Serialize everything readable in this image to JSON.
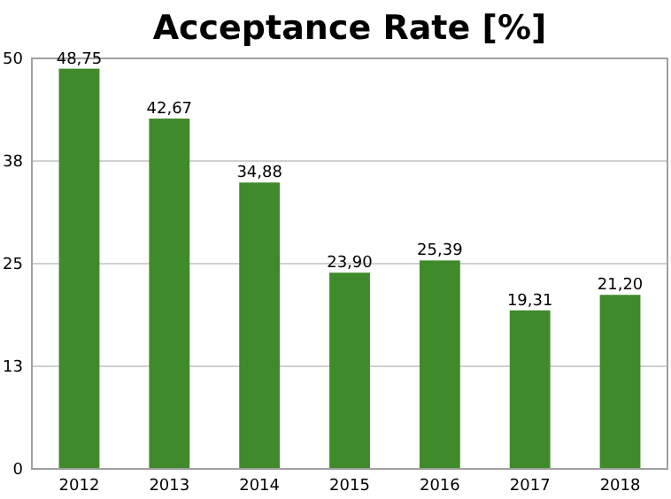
{
  "chart_data": {
    "type": "bar",
    "title": "Acceptance Rate [%]",
    "categories": [
      "2012",
      "2013",
      "2014",
      "2015",
      "2016",
      "2017",
      "2018"
    ],
    "values": [
      48.75,
      42.67,
      34.88,
      23.9,
      25.39,
      19.31,
      21.2
    ],
    "value_labels": [
      "48,75",
      "42,67",
      "34,88",
      "23,90",
      "25,39",
      "19,31",
      "21,20"
    ],
    "color": "#3f8a2a",
    "ylim": [
      0,
      50
    ],
    "yticks": [
      0,
      {
        "value": 12.5,
        "label": "13"
      },
      25,
      {
        "value": 37.5,
        "label": "38"
      },
      50
    ],
    "grid": "y"
  }
}
